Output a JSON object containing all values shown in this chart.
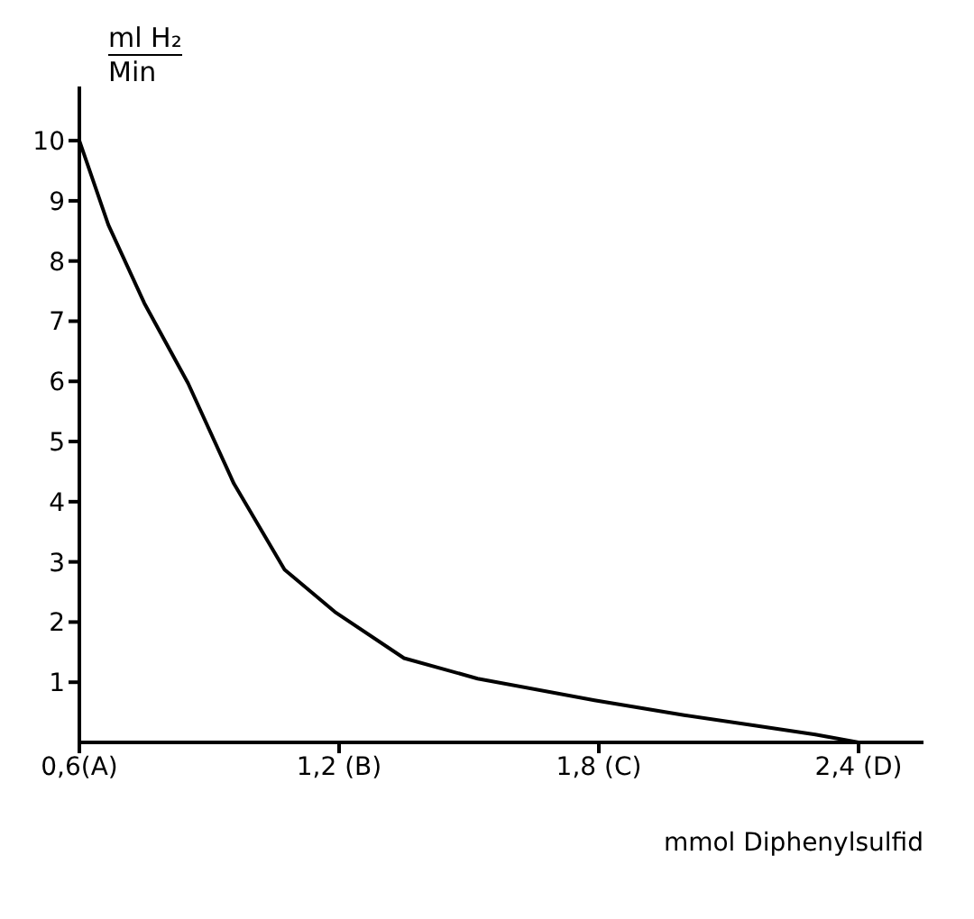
{
  "chart_data": {
    "type": "line",
    "ylabel": "ml H₂ Min",
    "xlabel": "mmol Diphenylsulfid",
    "x": [
      0.6,
      0.667,
      0.75,
      0.851,
      0.957,
      1.074,
      1.19,
      1.35,
      1.52,
      1.79,
      2.0,
      2.16,
      2.3,
      2.4
    ],
    "series": [
      {
        "color": "#000000",
        "values": [
          10,
          8.6,
          7.3,
          5.97,
          4.3,
          2.87,
          2.17,
          1.4,
          1.06,
          0.7,
          0.45,
          0.28,
          0.13,
          0
        ]
      }
    ],
    "xlim": [
      0.6,
      2.55
    ],
    "xticks": [
      {
        "value": 0.6,
        "label": "0,6(A)"
      },
      {
        "value": 1.2,
        "label": "1,2 (B)"
      },
      {
        "value": 1.8,
        "label": "1,8 (C)"
      },
      {
        "value": 2.4,
        "label": "2,4 (D)"
      }
    ],
    "ylim": [
      0,
      10.9
    ],
    "yticks": [
      1,
      2,
      3,
      4,
      5,
      6,
      7,
      8,
      9,
      10
    ],
    "grid": false,
    "legend": false,
    "marker": "none",
    "line_style": "solid"
  }
}
